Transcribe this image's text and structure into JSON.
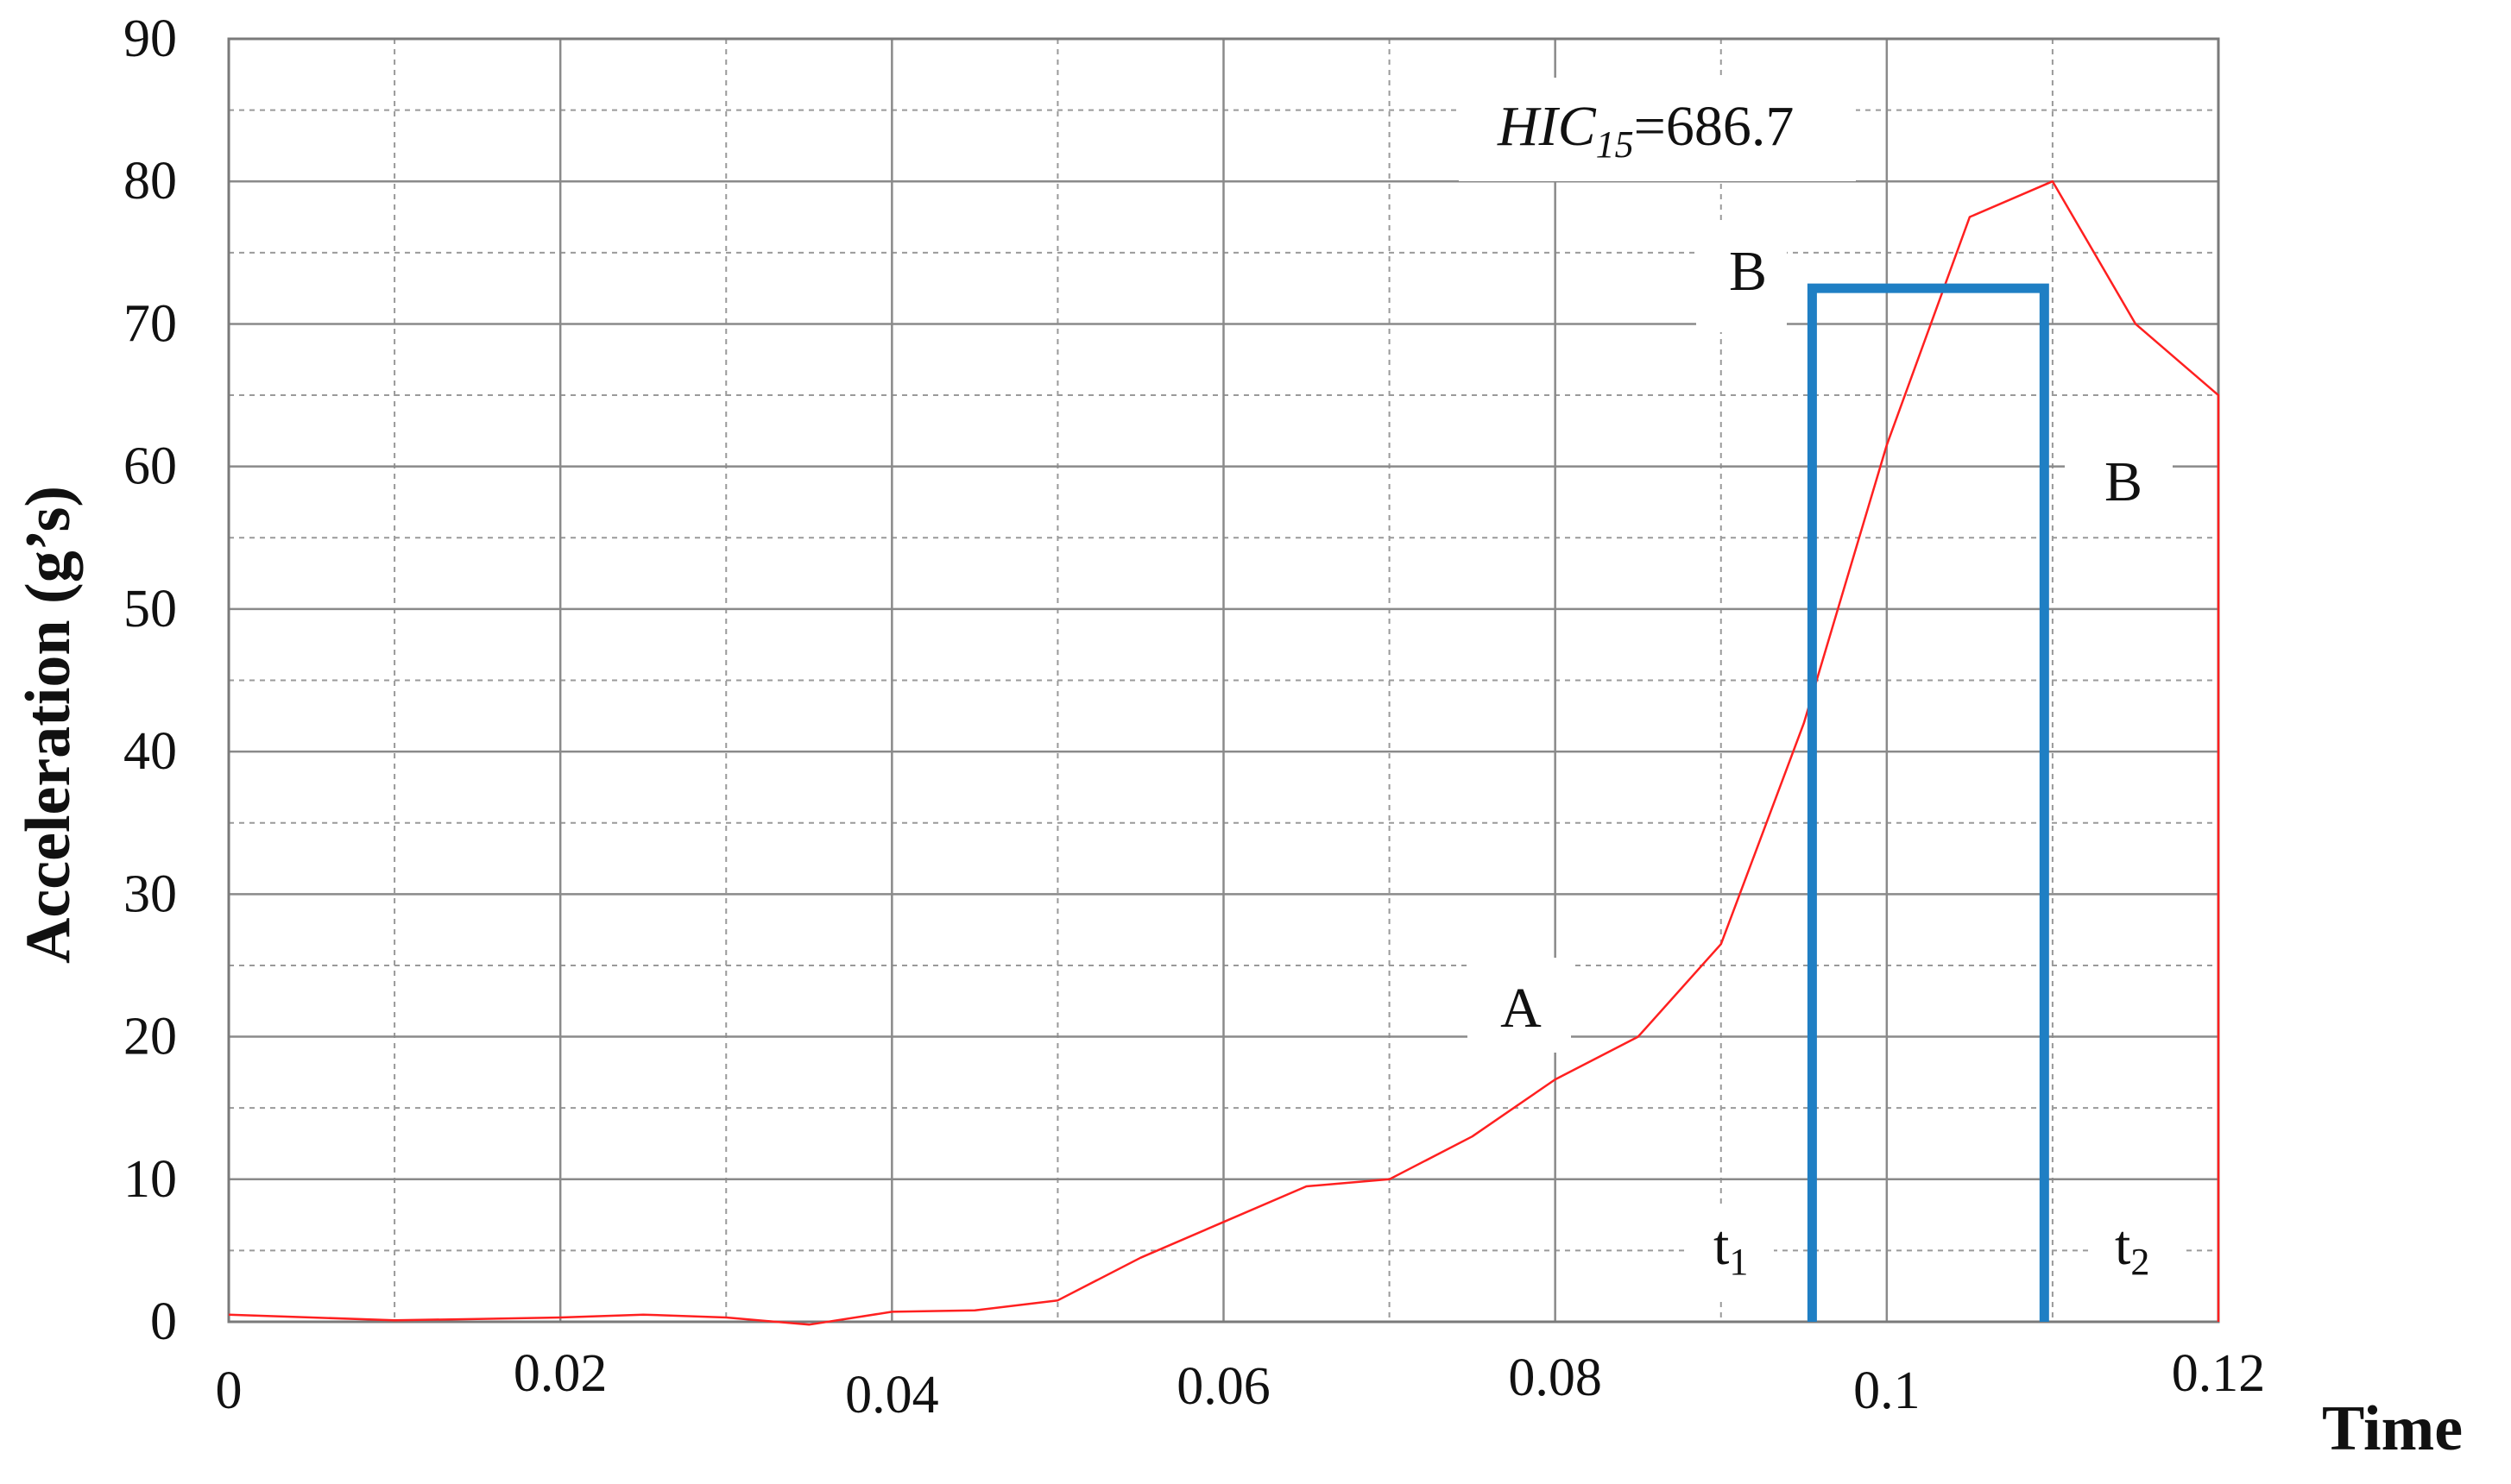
{
  "chart_data": {
    "type": "line",
    "xlabel": "Time",
    "ylabel": "Acceleration (g’s)",
    "xlim": [
      0,
      0.12
    ],
    "ylim": [
      0,
      90
    ],
    "x_ticks": [
      0,
      0.02,
      0.04,
      0.06,
      0.08,
      0.1,
      0.12
    ],
    "x_tick_labels": [
      "0",
      "0.02",
      "0.04",
      "0.06",
      "0.08",
      "0.1",
      "0.12"
    ],
    "y_ticks": [
      0,
      10,
      20,
      30,
      40,
      50,
      60,
      70,
      80,
      90
    ],
    "y_tick_labels": [
      "0",
      "10",
      "20",
      "30",
      "40",
      "50",
      "60",
      "70",
      "80",
      "90"
    ],
    "grid": true,
    "series": [
      {
        "color": "#ff2020",
        "x": [
          0,
          0.005,
          0.01,
          0.015,
          0.02,
          0.025,
          0.03,
          0.035,
          0.04,
          0.045,
          0.05,
          0.055,
          0.06,
          0.065,
          0.07,
          0.075,
          0.08,
          0.085,
          0.09,
          0.095,
          0.1,
          0.105,
          0.11,
          0.115,
          0.12,
          0.12
        ],
        "values": [
          0.5,
          0.3,
          0.1,
          0.2,
          0.3,
          0.5,
          0.3,
          -0.2,
          0.7,
          0.8,
          1.5,
          4.5,
          7.0,
          9.5,
          10.0,
          13.0,
          17.0,
          20.0,
          26.5,
          42.0,
          61.5,
          77.5,
          80.0,
          70.0,
          65.0,
          0
        ]
      }
    ],
    "hic_window": {
      "color": "#1f7fc4",
      "t1": 0.0955,
      "t2": 0.1095,
      "level": 72.5
    },
    "annotations": {
      "hic_prefix": "HIC",
      "hic_subscript": "15",
      "hic_value": "=686.7",
      "label_a": "A",
      "label_b_top": "B",
      "label_b_right": "B",
      "t1_base": "t",
      "t1_sub": "1",
      "t2_base": "t",
      "t2_sub": "2"
    }
  }
}
